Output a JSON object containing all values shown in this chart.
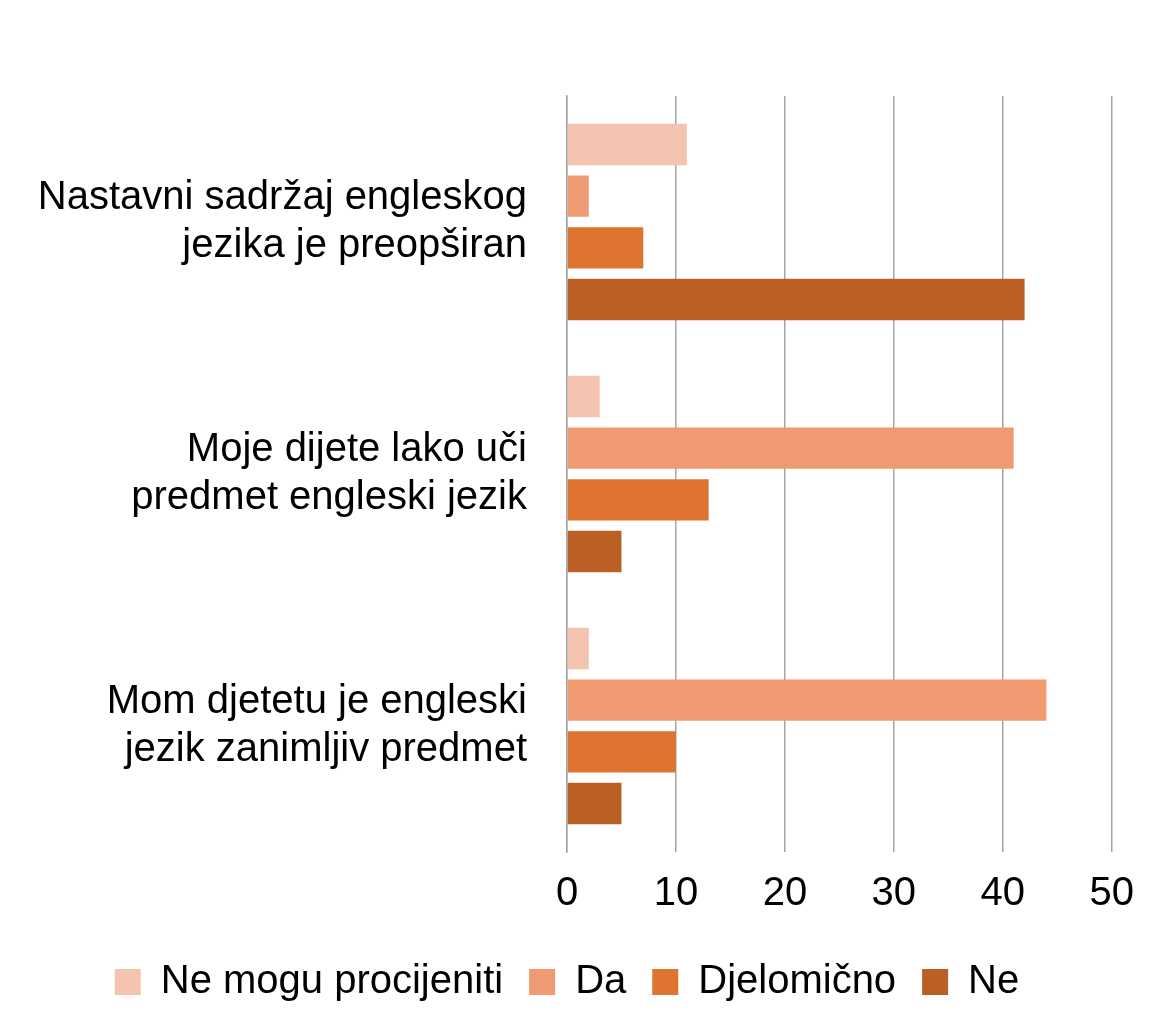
{
  "chart_data": {
    "type": "bar",
    "orientation": "horizontal",
    "categories": [
      "Nastavni sadržaj engleskog jezika je preopširan",
      "Moje dijete lako uči predmet engleski jezik",
      "Mom djetetu je engleski jezik zanimljiv predmet"
    ],
    "series": [
      {
        "name": "Ne mogu procijeniti",
        "color": "#f5c4b1",
        "values": [
          11,
          3,
          2
        ]
      },
      {
        "name": "Da",
        "color": "#f09a71",
        "values": [
          2,
          41,
          44
        ]
      },
      {
        "name": "Djelomično",
        "color": "#de7430",
        "values": [
          7,
          13,
          10
        ]
      },
      {
        "name": "Ne",
        "color": "#ba6025",
        "values": [
          42,
          5,
          5
        ]
      }
    ],
    "xlim": [
      0,
      50
    ],
    "xticks": [
      0,
      10,
      20,
      30,
      40,
      50
    ],
    "grid": "x",
    "legend": "bottom"
  }
}
